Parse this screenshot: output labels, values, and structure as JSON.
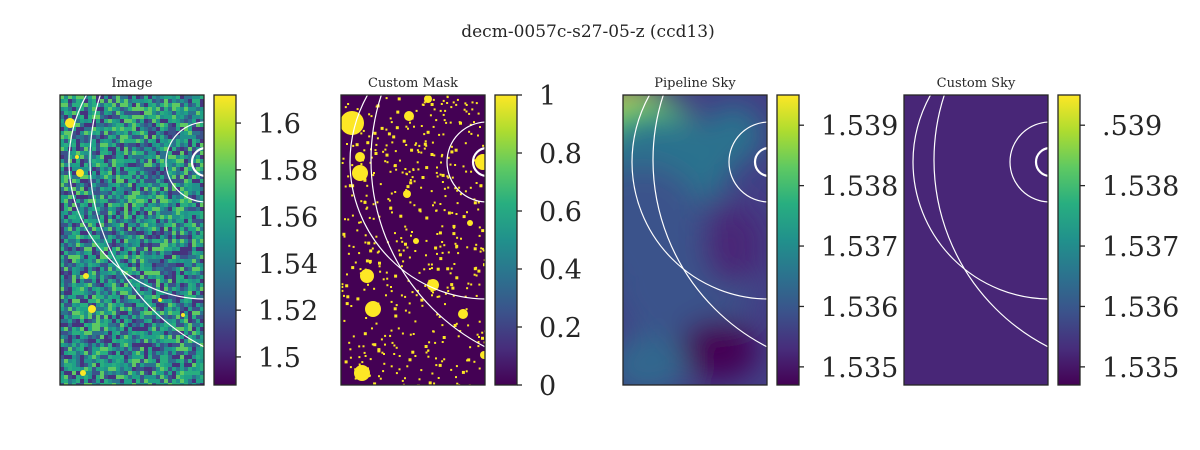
{
  "figure": {
    "title": "decm-0057c-s27-05-z (ccd13)"
  },
  "chart_data": [
    {
      "type": "heatmap",
      "title": "Image",
      "colormap": "viridis",
      "texture": "noise",
      "colorbar": {
        "ticks": [
          "1.6",
          "1.58",
          "1.56",
          "1.54",
          "1.52",
          "1.5"
        ],
        "range": [
          1.488,
          1.612
        ]
      },
      "overlay": "concentric-circle-arcs"
    },
    {
      "type": "heatmap",
      "title": "Custom Mask",
      "colormap": "viridis",
      "texture": "binary-mask",
      "colorbar": {
        "ticks": [
          "1",
          "0.8",
          "0.6",
          "0.4",
          "0.2",
          "0"
        ],
        "range": [
          0,
          1
        ]
      },
      "overlay": "concentric-circle-arcs"
    },
    {
      "type": "heatmap",
      "title": "Pipeline Sky",
      "colormap": "viridis",
      "texture": "smooth",
      "colorbar": {
        "ticks": [
          "1.539",
          "1.538",
          "1.537",
          "1.536",
          "1.535"
        ],
        "range": [
          1.5347,
          1.5395
        ]
      },
      "overlay": "concentric-circle-arcs"
    },
    {
      "type": "heatmap",
      "title": "Custom Sky",
      "colormap": "viridis",
      "texture": "uniform",
      "colorbar": {
        "ticks": [
          ".539",
          "1.538",
          "1.537",
          "1.536",
          "1.535"
        ],
        "range": [
          1.5347,
          1.5395
        ]
      },
      "overlay": "concentric-circle-arcs"
    }
  ],
  "colors": {
    "viridis_stops": [
      "#440154",
      "#472d7b",
      "#3b528b",
      "#2c728e",
      "#21918c",
      "#28ae80",
      "#5ec962",
      "#addc30",
      "#fde725"
    ],
    "mask_off": "#440154",
    "mask_on": "#fde725",
    "uniform_fill": "#482677",
    "overlay_stroke": "#ffffff",
    "frame": "#262626"
  }
}
